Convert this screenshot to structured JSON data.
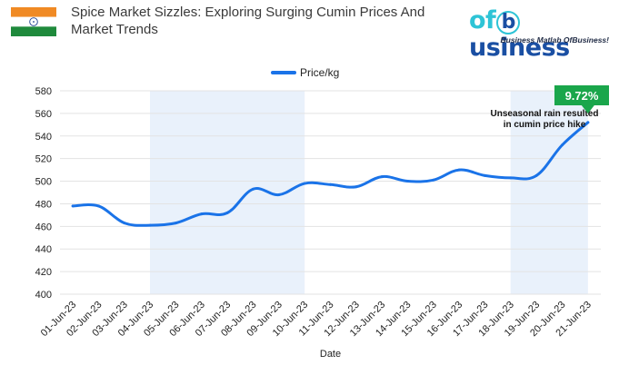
{
  "header": {
    "title": "Spice Market Sizzles: Exploring Surging Cumin Prices And Market Trends",
    "flag_icon": "india-flag-icon"
  },
  "logo": {
    "word_prefix": "of",
    "word_suffix": "usiness",
    "tagline": "Business Matlab OfBusiness!",
    "colors": {
      "of": "#2ec4d6",
      "business": "#1a4fa3"
    }
  },
  "chart_data": {
    "type": "line",
    "legend": "Price/kg",
    "legend_position": "top-center",
    "xlabel": "Date",
    "ylabel": "",
    "ylim": [
      400,
      580
    ],
    "yticks": [
      400,
      420,
      440,
      460,
      480,
      500,
      520,
      540,
      560,
      580
    ],
    "grid": true,
    "series_color": "#1a73e8",
    "categories": [
      "01-Jun-23",
      "02-Jun-23",
      "03-Jun-23",
      "04-Jun-23",
      "05-Jun-23",
      "06-Jun-23",
      "07-Jun-23",
      "08-Jun-23",
      "09-Jun-23",
      "10-Jun-23",
      "11-Jun-23",
      "12-Jun-23",
      "13-Jun-23",
      "14-Jun-23",
      "15-Jun-23",
      "16-Jun-23",
      "17-Jun-23",
      "18-Jun-23",
      "19-Jun-23",
      "20-Jun-23",
      "21-Jun-23"
    ],
    "series": [
      {
        "name": "Price/kg",
        "values": [
          478,
          478,
          463,
          461,
          463,
          471,
          472,
          493,
          488,
          498,
          497,
          495,
          504,
          500,
          501,
          510,
          505,
          503,
          505,
          532,
          552
        ]
      }
    ],
    "highlight_ranges": [
      [
        "04-Jun-23",
        "10-Jun-23"
      ],
      [
        "18-Jun-23",
        "21-Jun-23"
      ]
    ],
    "annotation": "Unseasonal rain resulted in cumin price hike",
    "annotation_lines": [
      "Unseasonal rain resulted",
      "in cumin price hike"
    ],
    "callout": "9.72%",
    "callout_color": "#1aa64b"
  }
}
